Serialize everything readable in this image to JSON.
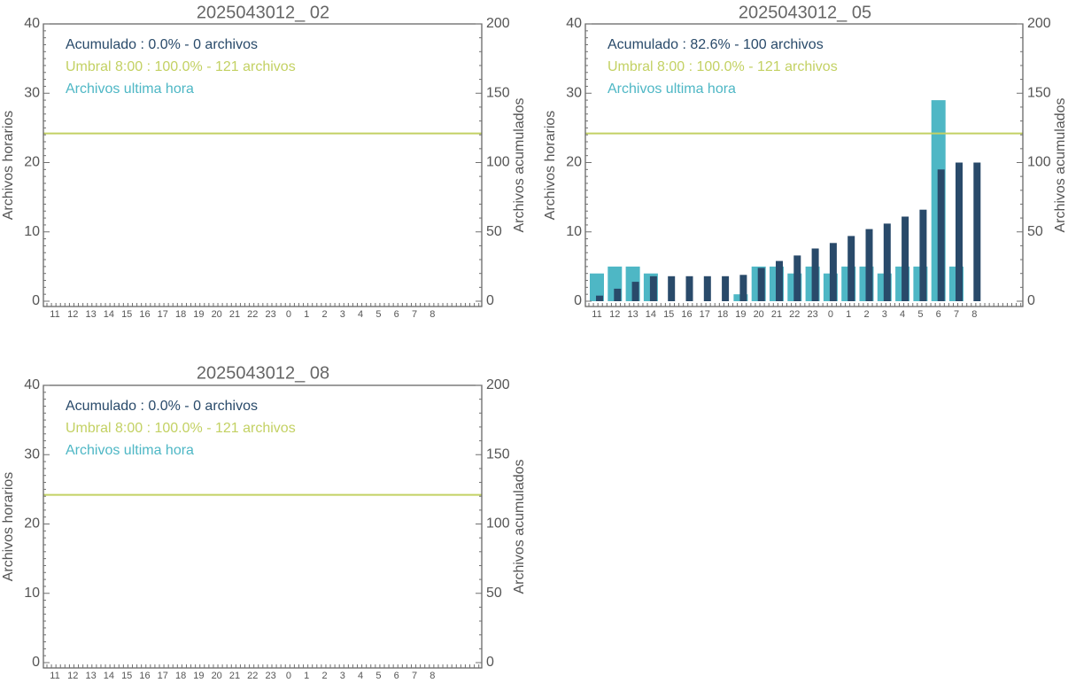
{
  "colors": {
    "hourly": "#4eb7c5",
    "cumulative": "#294a6a",
    "threshold": "#c3d163",
    "axis": "#5a5a5a",
    "text": "#555555"
  },
  "chart_data": [
    {
      "type": "bar",
      "title": "2025043012_ 02",
      "ylabel_left": "Archivos horarios",
      "ylabel_right": "Archivos acumulados",
      "ylim_left": [
        0,
        40
      ],
      "ylim_right": [
        0,
        200
      ],
      "yticks_left": [
        "0",
        "10",
        "20",
        "30",
        "40"
      ],
      "yticks_right": [
        "0",
        "50",
        "100",
        "150",
        "200"
      ],
      "categories": [
        "11",
        "12",
        "13",
        "14",
        "15",
        "16",
        "17",
        "18",
        "19",
        "20",
        "21",
        "22",
        "23",
        "0",
        "1",
        "2",
        "3",
        "4",
        "5",
        "6",
        "7",
        "8"
      ],
      "legend": [
        {
          "text": "Acumulado : 0.0% - 0 archivos",
          "color": "#294a6a"
        },
        {
          "text": "Umbral 8:00 : 100.0% - 121 archivos",
          "color": "#c3d163"
        },
        {
          "text": "Archivos ultima hora",
          "color": "#4eb7c5"
        }
      ],
      "threshold_cumulative": 121,
      "series": []
    },
    {
      "type": "bar",
      "title": "2025043012_ 05",
      "ylabel_left": "Archivos horarios",
      "ylabel_right": "Archivos acumulados",
      "ylim_left": [
        0,
        40
      ],
      "ylim_right": [
        0,
        200
      ],
      "yticks_left": [
        "0",
        "10",
        "20",
        "30",
        "40"
      ],
      "yticks_right": [
        "0",
        "50",
        "100",
        "150",
        "200"
      ],
      "categories": [
        "11",
        "12",
        "13",
        "14",
        "15",
        "16",
        "17",
        "18",
        "19",
        "20",
        "21",
        "22",
        "23",
        "0",
        "1",
        "2",
        "3",
        "4",
        "5",
        "6",
        "7",
        "8"
      ],
      "legend": [
        {
          "text": "Acumulado : 82.6% - 100 archivos",
          "color": "#294a6a"
        },
        {
          "text": "Umbral 8:00 : 100.0% - 121 archivos",
          "color": "#c3d163"
        },
        {
          "text": "Archivos ultima hora",
          "color": "#4eb7c5"
        }
      ],
      "threshold_cumulative": 121,
      "series": [
        {
          "axis": "left",
          "color": "#4eb7c5",
          "values": [
            4,
            5,
            5,
            4,
            0,
            0,
            0,
            0,
            1,
            5,
            5,
            4,
            5,
            4,
            5,
            5,
            4,
            5,
            5,
            29,
            5,
            0
          ]
        },
        {
          "axis": "right",
          "color": "#294a6a",
          "values": [
            4,
            9,
            14,
            18,
            18,
            18,
            18,
            18,
            19,
            24,
            29,
            33,
            38,
            42,
            47,
            52,
            56,
            61,
            66,
            95,
            100,
            100
          ]
        }
      ]
    },
    {
      "type": "bar",
      "title": "2025043012_ 08",
      "ylabel_left": "Archivos horarios",
      "ylabel_right": "Archivos acumulados",
      "ylim_left": [
        0,
        40
      ],
      "ylim_right": [
        0,
        200
      ],
      "yticks_left": [
        "0",
        "10",
        "20",
        "30",
        "40"
      ],
      "yticks_right": [
        "0",
        "50",
        "100",
        "150",
        "200"
      ],
      "categories": [
        "11",
        "12",
        "13",
        "14",
        "15",
        "16",
        "17",
        "18",
        "19",
        "20",
        "21",
        "22",
        "23",
        "0",
        "1",
        "2",
        "3",
        "4",
        "5",
        "6",
        "7",
        "8"
      ],
      "legend": [
        {
          "text": "Acumulado : 0.0% - 0 archivos",
          "color": "#294a6a"
        },
        {
          "text": "Umbral 8:00 : 100.0% - 121 archivos",
          "color": "#c3d163"
        },
        {
          "text": "Archivos ultima hora",
          "color": "#4eb7c5"
        }
      ],
      "threshold_cumulative": 121,
      "series": []
    }
  ]
}
